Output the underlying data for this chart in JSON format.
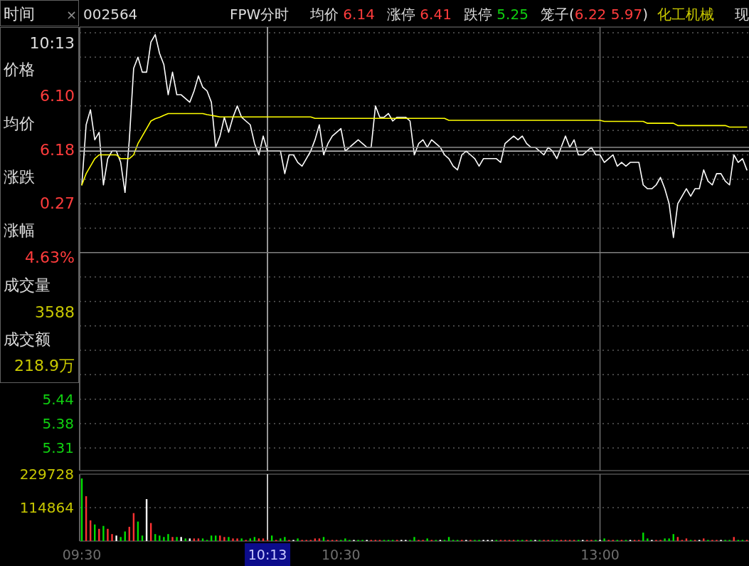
{
  "chart_data": [
    {
      "type": "line",
      "ylim": [
        5.25,
        6.43
      ],
      "tick_labels": "y",
      "grid": "y",
      "categories": [
        "09:30",
        null,
        null,
        null,
        null,
        null,
        null,
        null,
        null,
        null,
        null,
        null,
        null,
        null,
        null,
        null,
        null,
        null,
        null,
        null,
        null,
        null,
        null,
        null,
        null,
        null,
        null,
        null,
        null,
        null,
        null,
        null,
        null,
        null,
        null,
        null,
        null,
        null,
        null,
        null,
        null,
        null,
        null,
        "10:13",
        null,
        null,
        null,
        null,
        null,
        null,
        null,
        null,
        null,
        null,
        null,
        null,
        null,
        null,
        null,
        null,
        "10:30",
        null,
        null,
        null,
        null,
        null,
        null,
        null,
        null,
        null,
        null,
        null,
        null,
        null,
        null,
        null,
        null,
        null,
        null,
        null,
        null,
        null,
        null,
        null,
        null,
        null,
        null,
        null,
        null,
        null,
        null,
        null,
        null,
        null,
        null,
        null,
        null,
        null,
        null,
        null,
        null,
        null,
        null,
        null,
        null,
        null,
        null,
        null,
        null,
        null,
        null,
        null,
        null,
        null,
        null,
        null,
        null,
        null,
        null,
        null,
        "13:00",
        null,
        null,
        null,
        null,
        null,
        null,
        null,
        null,
        null,
        null,
        null,
        null,
        null,
        null,
        null,
        null,
        null,
        null,
        null,
        null,
        null,
        null,
        null,
        null,
        null,
        null,
        null,
        null,
        null,
        null,
        null,
        null,
        null,
        null
      ],
      "yticks": [
        {
          "value": 5.31,
          "label": "5.31"
        },
        {
          "value": 5.375,
          "label": "5.38"
        },
        {
          "value": 5.44,
          "label": "5.44"
        },
        {
          "value": 5.505,
          "label": null
        },
        {
          "value": 5.57,
          "label": null
        },
        {
          "value": 5.635,
          "label": null
        },
        {
          "value": 5.7,
          "label": null
        },
        {
          "value": 5.765,
          "label": null
        },
        {
          "value": 5.895,
          "label": null
        },
        {
          "value": 5.96,
          "label": null
        },
        {
          "value": 6.025,
          "label": null
        },
        {
          "value": 6.09,
          "label": null
        },
        {
          "value": 6.155,
          "label": null
        },
        {
          "value": 6.22,
          "label": null
        },
        {
          "value": 6.285,
          "label": null
        },
        {
          "value": 6.35,
          "label": null
        },
        {
          "value": 6.415,
          "label": null
        }
      ],
      "ref_lines": [
        {
          "axis": "y",
          "value": 5.83,
          "color": "#808080"
        },
        {
          "axis": "y",
          "value": 6.11,
          "color": "#8a8a8a"
        },
        {
          "axis": "y",
          "value": 6.1,
          "color": "#c8c8c8"
        },
        {
          "axis": "x",
          "value": "10:13",
          "color": "#c8c8c8"
        },
        {
          "axis": "x",
          "value": "13:00",
          "color": "#707070"
        }
      ],
      "series": [
        {
          "color": "#ffffff",
          "values": [
            6.01,
            6.17,
            6.21,
            6.13,
            6.15,
            6.01,
            6.08,
            6.1,
            6.1,
            6.07,
            5.99,
            6.13,
            6.32,
            6.35,
            6.31,
            6.31,
            6.39,
            6.41,
            6.36,
            6.33,
            6.25,
            6.31,
            6.25,
            6.25,
            6.24,
            6.23,
            6.26,
            6.3,
            6.27,
            6.26,
            6.23,
            6.11,
            6.14,
            6.19,
            6.15,
            6.19,
            6.22,
            6.19,
            6.18,
            6.17,
            6.12,
            6.09,
            6.14,
            6.1,
            6.1,
            6.1,
            6.1,
            6.04,
            6.09,
            6.09,
            6.07,
            6.06,
            6.08,
            6.1,
            6.13,
            6.17,
            6.09,
            6.12,
            6.14,
            6.15,
            6.16,
            6.1,
            6.11,
            6.12,
            6.13,
            6.12,
            6.11,
            6.11,
            6.22,
            6.19,
            6.19,
            6.2,
            6.18,
            6.19,
            6.19,
            6.19,
            6.18,
            6.09,
            6.12,
            6.13,
            6.11,
            6.13,
            6.12,
            6.11,
            6.09,
            6.08,
            6.06,
            6.05,
            6.09,
            6.1,
            6.09,
            6.08,
            6.06,
            6.08,
            6.08,
            6.08,
            6.08,
            6.07,
            6.12,
            6.13,
            6.14,
            6.13,
            6.14,
            6.12,
            6.11,
            6.11,
            6.1,
            6.09,
            6.11,
            6.1,
            6.08,
            6.11,
            6.14,
            6.11,
            6.13,
            6.09,
            6.09,
            6.1,
            6.11,
            6.09,
            6.09,
            6.07,
            6.08,
            6.09,
            6.06,
            6.07,
            6.06,
            6.07,
            6.07,
            6.07,
            6.01,
            6.0,
            6.0,
            6.01,
            6.03,
            6.0,
            5.96,
            5.87,
            5.96,
            5.98,
            6.0,
            5.98,
            6.0,
            6.0,
            6.05,
            6.02,
            6.01,
            6.04,
            6.04,
            6.02,
            6.01,
            6.09,
            6.07,
            6.08,
            6.05
          ]
        },
        {
          "color": "#ffff00",
          "values": [
            6.01,
            6.04,
            6.06,
            6.08,
            6.09,
            6.09,
            6.09,
            6.09,
            6.09,
            6.08,
            6.08,
            6.08,
            6.09,
            6.12,
            6.14,
            6.16,
            6.18,
            6.186,
            6.19,
            6.195,
            6.2,
            6.2,
            6.2,
            6.2,
            6.2,
            6.2,
            6.2,
            6.2,
            6.2,
            6.197,
            6.195,
            6.193,
            6.191,
            6.191,
            6.191,
            6.191,
            6.191,
            6.191,
            6.191,
            6.191,
            6.191,
            6.191,
            6.191,
            6.191,
            6.191,
            6.191,
            6.191,
            6.191,
            6.191,
            6.191,
            6.191,
            6.191,
            6.191,
            6.191,
            6.187,
            6.187,
            6.187,
            6.187,
            6.187,
            6.187,
            6.187,
            6.187,
            6.187,
            6.187,
            6.187,
            6.187,
            6.187,
            6.187,
            6.187,
            6.187,
            6.187,
            6.187,
            6.187,
            6.187,
            6.187,
            6.187,
            6.187,
            6.187,
            6.187,
            6.187,
            6.187,
            6.187,
            6.187,
            6.187,
            6.187,
            6.182,
            6.182,
            6.182,
            6.182,
            6.182,
            6.182,
            6.182,
            6.182,
            6.182,
            6.182,
            6.182,
            6.182,
            6.182,
            6.182,
            6.182,
            6.182,
            6.182,
            6.182,
            6.182,
            6.182,
            6.182,
            6.182,
            6.182,
            6.182,
            6.182,
            6.182,
            6.182,
            6.182,
            6.182,
            6.182,
            6.182,
            6.182,
            6.182,
            6.182,
            6.182,
            6.182,
            6.179,
            6.179,
            6.179,
            6.179,
            6.179,
            6.179,
            6.179,
            6.179,
            6.179,
            6.179,
            6.174,
            6.174,
            6.174,
            6.174,
            6.174,
            6.174,
            6.174,
            6.168,
            6.168,
            6.168,
            6.168,
            6.168,
            6.168,
            6.168,
            6.168,
            6.168,
            6.168,
            6.168,
            6.168,
            6.164,
            6.164,
            6.164,
            6.164,
            6.164
          ]
        }
      ],
      "annotations": [
        "时间",
        "×",
        "002564",
        "FPW分时",
        "均价 6.14",
        "涨停 6.41",
        "跌停 5.25",
        "笼子(6.22 5.97)",
        "化工机械",
        "现",
        "10:13",
        "价格",
        "6.10",
        "均价",
        "6.18",
        "涨跌",
        "0.27",
        "涨幅",
        "4.63%",
        "成交量",
        "3588",
        "成交额",
        "218.9万"
      ]
    },
    {
      "type": "bar",
      "ylim": [
        0,
        229728
      ],
      "yticks": [
        114864,
        229728
      ],
      "categories": [
        "09:30",
        null,
        null,
        null,
        null,
        null,
        null,
        null,
        null,
        null,
        null,
        null,
        null,
        null,
        null,
        null,
        null,
        null,
        null,
        null,
        null,
        null,
        null,
        null,
        null,
        null,
        null,
        null,
        null,
        null,
        null,
        null,
        null,
        null,
        null,
        null,
        null,
        null,
        null,
        null,
        null,
        null,
        null,
        "10:13",
        null,
        null,
        null,
        null,
        null,
        null,
        null,
        null,
        null,
        null,
        null,
        null,
        null,
        null,
        null,
        null,
        "10:30",
        null,
        null,
        null,
        null,
        null,
        null,
        null,
        null,
        null,
        null,
        null,
        null,
        null,
        null,
        null,
        null,
        null,
        null,
        null,
        null,
        null,
        null,
        null,
        null,
        null,
        null,
        null,
        null,
        null,
        null,
        null,
        null,
        null,
        null,
        null,
        null,
        null,
        null,
        null,
        null,
        null,
        null,
        null,
        null,
        null,
        null,
        null,
        null,
        null,
        null,
        null,
        null,
        null,
        null,
        null,
        null,
        null,
        null,
        null,
        "13:00",
        null,
        null,
        null,
        null,
        null,
        null,
        null,
        null,
        null,
        null,
        null,
        null,
        null,
        null,
        null,
        null,
        null,
        null,
        null,
        null,
        null,
        null,
        null,
        null,
        null,
        null,
        null,
        null,
        null,
        null,
        null,
        null,
        null,
        null
      ],
      "ref_lines": [
        {
          "axis": "x",
          "value": "10:13",
          "color": "#ffffff"
        },
        {
          "axis": "x",
          "value": "13:00",
          "color": "#707070"
        },
        {
          "axis": "y",
          "value": 114864,
          "color": "#5a5a5a",
          "line_style": "dotted"
        }
      ],
      "values": [
        215000,
        154000,
        71000,
        57000,
        42000,
        52000,
        42000,
        24000,
        19000,
        14000,
        33000,
        49000,
        96000,
        67000,
        19000,
        144000,
        62000,
        24000,
        19000,
        14000,
        24000,
        14000,
        14000,
        14000,
        9000,
        9000,
        9000,
        9000,
        9000,
        4000,
        19000,
        19000,
        19000,
        14000,
        14000,
        9000,
        9000,
        9000,
        4000,
        9000,
        14000,
        9000,
        9000,
        4000,
        19000,
        4000,
        9000,
        14000,
        4000,
        4000,
        9000,
        4000,
        4000,
        4000,
        9000,
        9000,
        14000,
        4000,
        4000,
        4000,
        4000,
        9000,
        4000,
        4000,
        4000,
        4000,
        4000,
        4000,
        4000,
        4000,
        4000,
        4000,
        4000,
        4000,
        4000,
        4000,
        4000,
        14000,
        4000,
        4000,
        9000,
        4000,
        4000,
        4000,
        4000,
        14000,
        4000,
        4000,
        4000,
        4000,
        4000,
        4000,
        4000,
        4000,
        4000,
        4000,
        4000,
        4000,
        4000,
        4000,
        4000,
        4000,
        4000,
        4000,
        4000,
        4000,
        4000,
        4000,
        4000,
        4000,
        4000,
        4000,
        4000,
        4000,
        4000,
        4000,
        4000,
        4000,
        4000,
        4000,
        4000,
        9000,
        4000,
        4000,
        4000,
        4000,
        4000,
        4000,
        4000,
        4000,
        29000,
        9000,
        4000,
        4000,
        4000,
        9000,
        9000,
        24000,
        14000,
        4000,
        9000,
        4000,
        4000,
        4000,
        9000,
        4000,
        4000,
        4000,
        4000,
        4000,
        4000,
        14000,
        4000,
        4000,
        4000
      ],
      "colors": [
        "#00e000",
        "#ff3232",
        "#ff3232",
        "#00e000",
        "#ff3232",
        "#00e000",
        "#ff3232",
        "#ff3232",
        "#ffffff",
        "#00e000",
        "#00e000",
        "#ff3232",
        "#ff3232",
        "#00e000",
        "#00e000",
        "#ffffff",
        "#ff3232",
        "#00e000",
        "#00e000",
        "#00e000",
        "#00e000",
        "#ff3232",
        "#00e000",
        "#ffffff",
        "#00e000",
        "#ffffff",
        "#ff3232",
        "#ff3232",
        "#00e000",
        "#00e000",
        "#00e000",
        "#00e000",
        "#ff3232",
        "#ff3232",
        "#00e000",
        "#ff3232",
        "#ff3232",
        "#00e000",
        "#ff3232",
        "#00e000",
        "#00e000",
        "#ff3232",
        "#ff3232",
        "#ff3232",
        "#00e000",
        "#ff3232",
        "#00e000",
        "#00e000",
        "#ff3232",
        "#ffffff",
        "#00e000",
        "#ff3232",
        "#ff3232",
        "#ff3232",
        "#ff3232",
        "#ff3232",
        "#00e000",
        "#ff3232",
        "#ff3232",
        "#ff3232",
        "#00e000",
        "#00e000",
        "#00e000",
        "#ffffff",
        "#00e000",
        "#00e000",
        "#ffffff",
        "#ff3232",
        "#ff3232",
        "#ff3232",
        "#00e000",
        "#00e000",
        "#00e000",
        "#ff3232",
        "#ffffff",
        "#ffffff",
        "#00e000",
        "#00e000",
        "#ff3232",
        "#ff3232",
        "#00e000",
        "#ff3232",
        "#00e000",
        "#ffffff",
        "#00e000",
        "#00e000",
        "#00e000",
        "#00e000",
        "#ff3232",
        "#ffffff",
        "#ff3232",
        "#00e000",
        "#00e000",
        "#ffffff",
        "#ffffff",
        "#ffffff",
        "#00e000",
        "#ff3232",
        "#ff3232",
        "#ff3232",
        "#ff3232",
        "#00e000",
        "#00e000",
        "#ff3232",
        "#00e000",
        "#ffffff",
        "#00e000",
        "#ff3232",
        "#ff3232",
        "#00e000",
        "#00e000",
        "#ff3232",
        "#ff3232",
        "#ff3232",
        "#ff3232",
        "#00e000",
        "#ffffff",
        "#ff3232",
        "#ff3232",
        "#00e000",
        "#ffffff",
        "#00e000",
        "#ff3232",
        "#ff3232",
        "#00e000",
        "#ff3232",
        "#00e000",
        "#ffffff",
        "#ff3232",
        "#ff3232",
        "#00e000",
        "#00e000",
        "#ffffff",
        "#ff3232",
        "#ff3232",
        "#00e000",
        "#00e000",
        "#00e000",
        "#ff3232",
        "#ff3232",
        "#ff3232",
        "#00e000",
        "#ff3232",
        "#ffffff",
        "#ff3232",
        "#00e000",
        "#ff3232",
        "#ff3232",
        "#ffffff",
        "#00e000",
        "#00e000",
        "#ff3232",
        "#00e000",
        "#00e000",
        "#ff3232"
      ]
    }
  ]
}
